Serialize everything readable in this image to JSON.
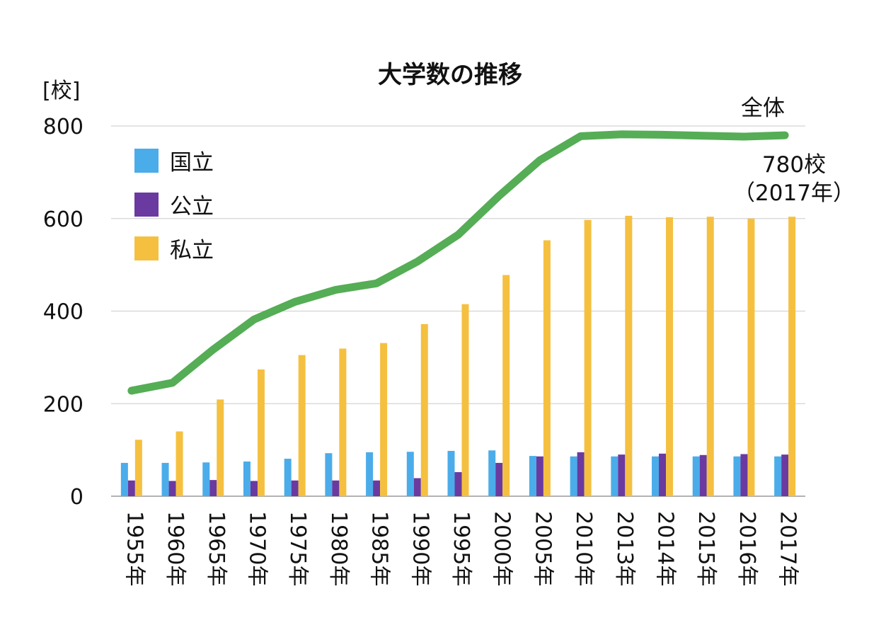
{
  "chart_data": {
    "type": "bar+line",
    "title": "大学数の推移",
    "unit_label": "[校]",
    "ylim": [
      0,
      800
    ],
    "yticks": [
      "0",
      "200",
      "400",
      "600",
      "800"
    ],
    "categories": [
      "1955年",
      "1960年",
      "1965年",
      "1970年",
      "1975年",
      "1980年",
      "1985年",
      "1990年",
      "1995年",
      "2000年",
      "2005年",
      "2010年",
      "2013年",
      "2014年",
      "2015年",
      "2016年",
      "2017年"
    ],
    "series": [
      {
        "name": "国立",
        "kind": "bar",
        "color": "#4bacea",
        "values": [
          72,
          72,
          73,
          75,
          81,
          93,
          95,
          96,
          98,
          99,
          87,
          86,
          86,
          86,
          86,
          86,
          86
        ]
      },
      {
        "name": "公立",
        "kind": "bar",
        "color": "#6a3aa0",
        "values": [
          34,
          33,
          35,
          33,
          34,
          34,
          34,
          39,
          52,
          72,
          86,
          95,
          90,
          92,
          89,
          91,
          90
        ]
      },
      {
        "name": "私立",
        "kind": "bar",
        "color": "#f5c040",
        "values": [
          122,
          140,
          209,
          274,
          305,
          319,
          331,
          372,
          415,
          478,
          553,
          597,
          606,
          603,
          604,
          600,
          604
        ]
      },
      {
        "name": "全体",
        "kind": "line",
        "color": "#55ad55",
        "values": [
          228,
          245,
          317,
          382,
          420,
          446,
          460,
          507,
          565,
          649,
          726,
          778,
          782,
          781,
          779,
          777,
          780
        ]
      }
    ],
    "annotations": {
      "total_label": "全体",
      "last_value_label": "780校",
      "last_year_label": "（2017年）"
    }
  }
}
